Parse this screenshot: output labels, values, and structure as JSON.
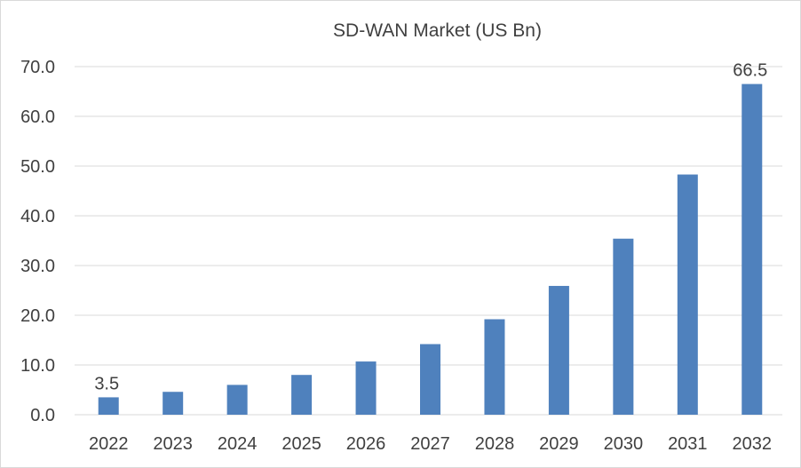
{
  "chart_data": {
    "type": "bar",
    "title": "SD-WAN Market (US Bn)",
    "xlabel": "",
    "ylabel": "",
    "categories": [
      "2022",
      "2023",
      "2024",
      "2025",
      "2026",
      "2027",
      "2028",
      "2029",
      "2030",
      "2031",
      "2032"
    ],
    "values": [
      3.5,
      4.6,
      6.0,
      8.0,
      10.7,
      14.2,
      19.2,
      25.9,
      35.4,
      48.3,
      66.5
    ],
    "ylim": [
      0,
      70
    ],
    "yticks": [
      0,
      10,
      20,
      30,
      40,
      50,
      60,
      70
    ],
    "ytick_labels": [
      "0.0",
      "10.0",
      "20.0",
      "30.0",
      "40.0",
      "50.0",
      "60.0",
      "70.0"
    ],
    "data_labels": [
      {
        "index": 0,
        "text": "3.5"
      },
      {
        "index": 10,
        "text": "66.5"
      }
    ],
    "bar_color": "#4f81bd",
    "grid": true,
    "legend": "none"
  }
}
